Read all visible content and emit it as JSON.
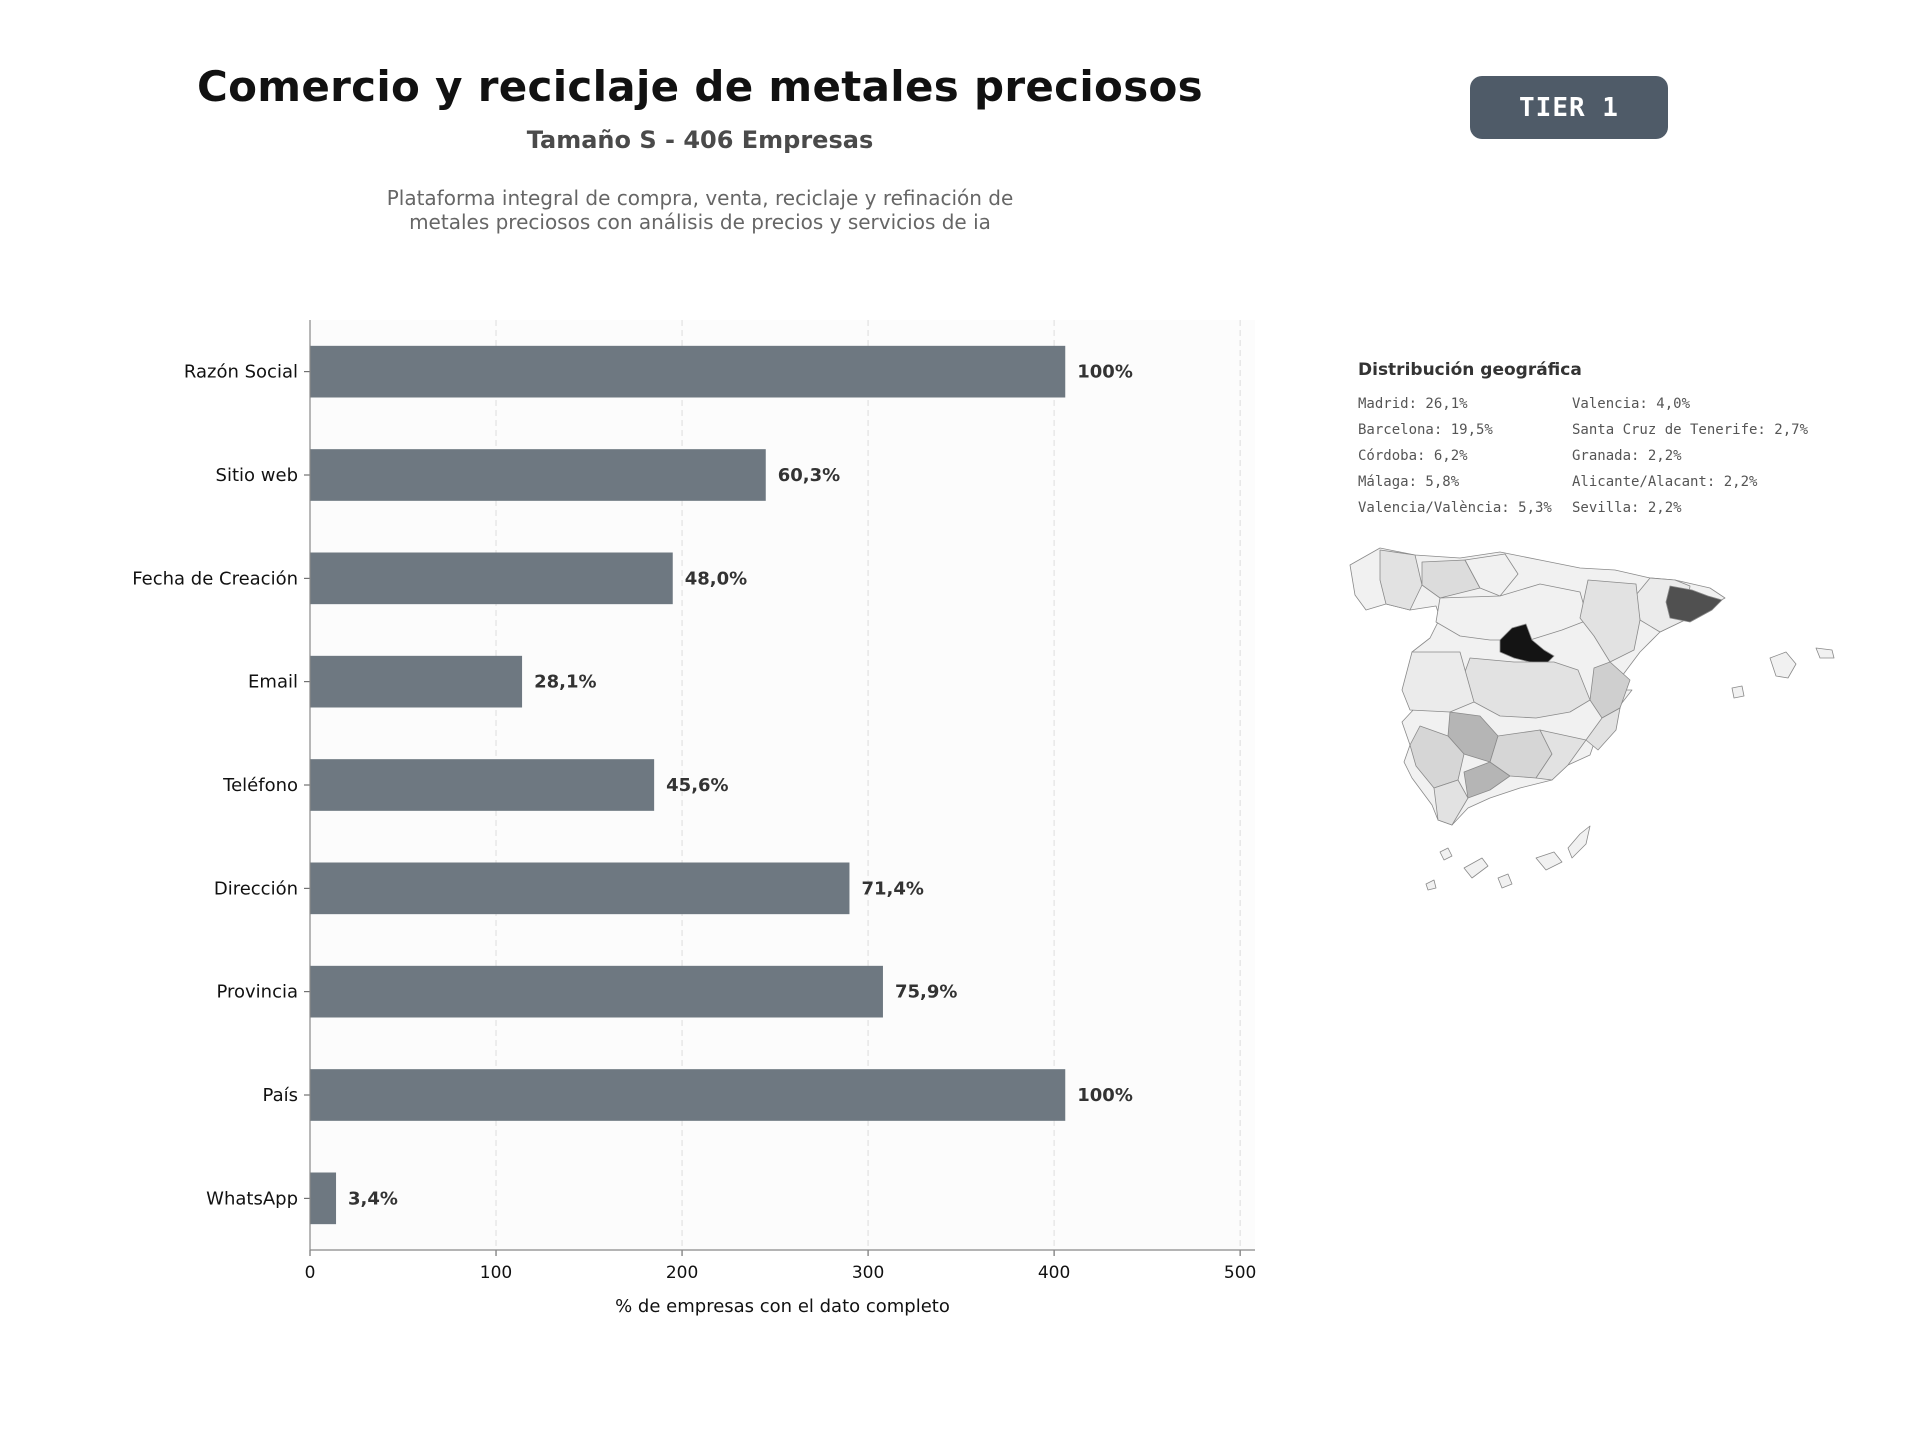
{
  "header": {
    "title": "Comercio y reciclaje de metales preciosos",
    "subtitle": "Tamaño S - 406 Empresas",
    "description_line1": "Plataforma integral de compra, venta, reciclaje y refinación de",
    "description_line2": "metales preciosos con análisis de precios y servicios de ia"
  },
  "badge": {
    "label": "TIER 1",
    "color": "#4f5b68"
  },
  "chart_data": {
    "type": "bar",
    "orientation": "horizontal",
    "categories": [
      "Razón Social",
      "Sitio web",
      "Fecha de Creación",
      "Email",
      "Teléfono",
      "Dirección",
      "Provincia",
      "País",
      "WhatsApp"
    ],
    "values": [
      406,
      245,
      195,
      114,
      185,
      290,
      308,
      406,
      14
    ],
    "value_labels": [
      "100%",
      "60,3%",
      "48,0%",
      "28,1%",
      "45,6%",
      "71,4%",
      "75,9%",
      "100%",
      "3,4%"
    ],
    "xlabel": "% de empresas con el dato completo",
    "ylabel": "",
    "xlim": [
      0,
      508
    ],
    "xticks": [
      0,
      100,
      200,
      300,
      400,
      500
    ],
    "grid": "vertical dashed",
    "bar_color": "#6e7881"
  },
  "geo": {
    "title": "Distribución geográfica",
    "col1": [
      "Madrid: 26,1%",
      "Barcelona: 19,5%",
      "Córdoba: 6,2%",
      "Málaga: 5,8%",
      "Valencia/València: 5,3%"
    ],
    "col2": [
      "Valencia: 4,0%",
      "Santa Cruz de Tenerife: 2,7%",
      "Granada: 2,2%",
      "Alicante/Alacant: 2,2%",
      "Sevilla: 2,2%"
    ]
  },
  "map_colors": {
    "madrid": "#141414",
    "barcelona": "#505050",
    "high": "#b5b5b5",
    "mid": "#cfcfcf",
    "low": "#e2e2e2",
    "base": "#f1f1f1"
  }
}
